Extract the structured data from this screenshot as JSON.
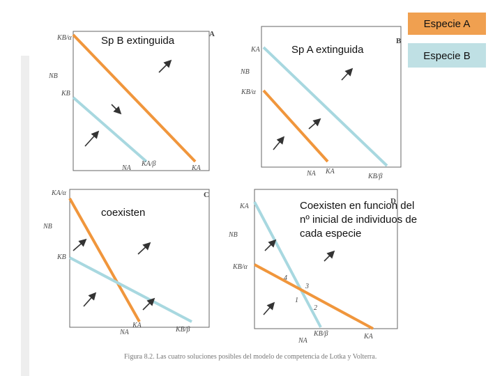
{
  "legend": {
    "species_a": "Especie A",
    "species_b": "Especie B"
  },
  "panels": [
    {
      "letter": "A",
      "note": "Sp B extinguida",
      "labels": [
        "KB/α",
        "NB",
        "KB",
        "NA",
        "KA/β",
        "KA"
      ]
    },
    {
      "letter": "B",
      "note": "Sp A extinguida",
      "labels": [
        "KA",
        "NB",
        "KB/α",
        "NA",
        "KA",
        "KB/β"
      ]
    },
    {
      "letter": "C",
      "note": "coexisten",
      "labels": [
        "KA/α",
        "NB",
        "KB",
        "NA",
        "KA",
        "KB/β"
      ]
    },
    {
      "letter": "D",
      "note": "Coexisten en funcion del nº inicial de individuos de cada especie",
      "labels": [
        "KA",
        "NB",
        "KB/α",
        "NA",
        "KB/β",
        "KA",
        "4",
        "3",
        "1",
        "2"
      ]
    }
  ],
  "caption": "Figura 8.2. Las cuatro soluciones posibles del modelo de competencia de Lotka y Volterra."
}
